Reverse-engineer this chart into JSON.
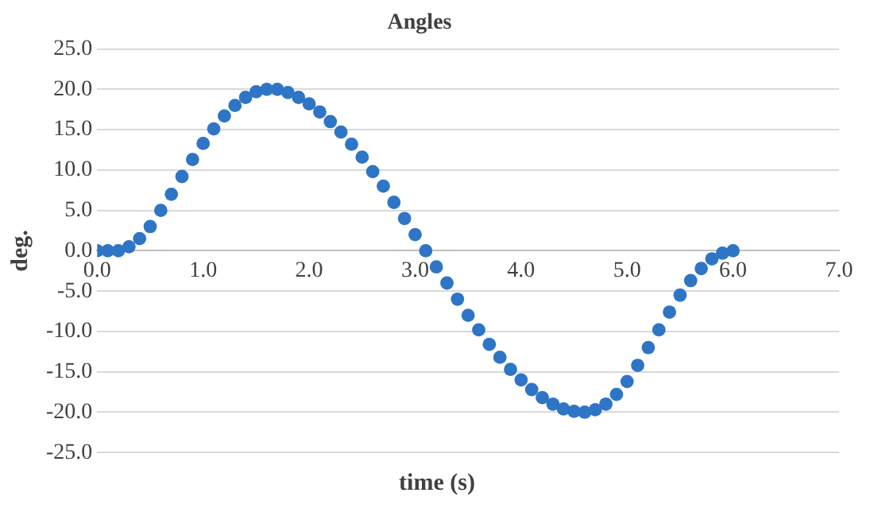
{
  "chart_data": {
    "type": "scatter",
    "title": "Angles",
    "xlabel": "time (s)",
    "ylabel": "deg.",
    "marker": "circle",
    "grid": "y",
    "legend": false,
    "xlim": [
      0,
      7
    ],
    "xticks": [
      {
        "value": 0,
        "label": "0.0"
      },
      {
        "value": 1,
        "label": "1.0"
      },
      {
        "value": 2,
        "label": "2.0"
      },
      {
        "value": 3,
        "label": "3.0"
      },
      {
        "value": 4,
        "label": "4.0"
      },
      {
        "value": 5,
        "label": "5.0"
      },
      {
        "value": 6,
        "label": "6.0"
      },
      {
        "value": 7,
        "label": "7.0"
      }
    ],
    "ylim": [
      -25,
      25
    ],
    "yticks": [
      {
        "value": -25,
        "label": "-25.0"
      },
      {
        "value": -20,
        "label": "-20.0"
      },
      {
        "value": -15,
        "label": "-15.0"
      },
      {
        "value": -10,
        "label": "-10.0"
      },
      {
        "value": -5,
        "label": "-5.0"
      },
      {
        "value": 0,
        "label": "0.0"
      },
      {
        "value": 5,
        "label": "5.0"
      },
      {
        "value": 10,
        "label": "10.0"
      },
      {
        "value": 15,
        "label": "15.0"
      },
      {
        "value": 20,
        "label": "20.0"
      },
      {
        "value": 25,
        "label": "25.0"
      }
    ],
    "series": [
      {
        "color": "#2e75c6",
        "x": [
          0,
          0.1,
          0.2,
          0.3,
          0.4,
          0.5,
          0.6,
          0.7,
          0.8,
          0.9,
          1.0,
          1.1,
          1.2,
          1.3,
          1.4,
          1.5,
          1.6,
          1.7,
          1.8,
          1.9,
          2.0,
          2.1,
          2.2,
          2.3,
          2.4,
          2.5,
          2.6,
          2.7,
          2.8,
          2.9,
          3.0,
          3.1,
          3.2,
          3.3,
          3.4,
          3.5,
          3.6,
          3.7,
          3.8,
          3.9,
          4.0,
          4.1,
          4.2,
          4.3,
          4.4,
          4.5,
          4.6,
          4.7,
          4.8,
          4.9,
          5.0,
          5.1,
          5.2,
          5.3,
          5.4,
          5.5,
          5.6,
          5.7,
          5.8,
          5.9,
          6.0
        ],
        "values": [
          0,
          0,
          0,
          0.5,
          1.5,
          3,
          5,
          7,
          9.2,
          11.3,
          13.3,
          15.1,
          16.7,
          18,
          19,
          19.7,
          20,
          20,
          19.6,
          19,
          18.2,
          17.2,
          16,
          14.7,
          13.2,
          11.6,
          9.8,
          8,
          6,
          4,
          2,
          0,
          -2,
          -4,
          -6,
          -8,
          -9.8,
          -11.6,
          -13.2,
          -14.7,
          -16,
          -17.2,
          -18.2,
          -19,
          -19.6,
          -19.9,
          -20,
          -19.7,
          -19,
          -17.8,
          -16.2,
          -14.2,
          -12,
          -9.8,
          -7.6,
          -5.5,
          -3.7,
          -2.2,
          -1,
          -0.3,
          0
        ]
      }
    ]
  }
}
